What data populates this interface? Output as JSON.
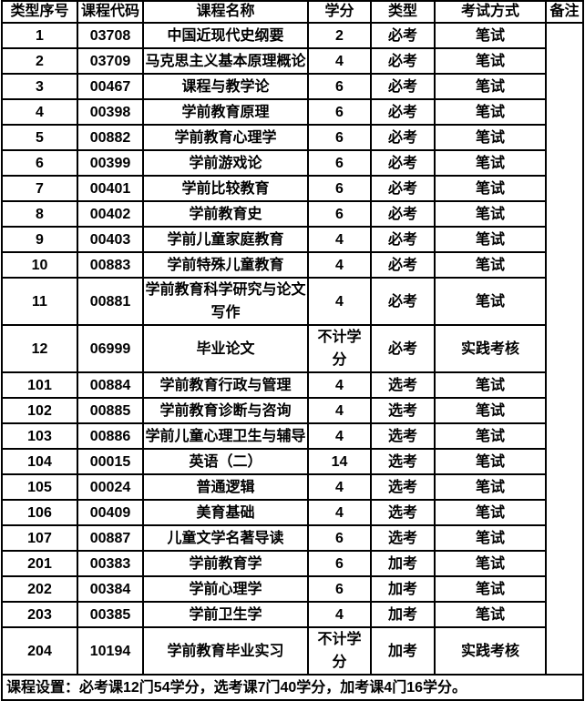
{
  "table": {
    "headers": [
      "类型序号",
      "课程代码",
      "课程名称",
      "学分",
      "类型",
      "考试方式",
      "备注"
    ],
    "rows": [
      {
        "seq": "1",
        "code": "03708",
        "name": "中国近现代史纲要",
        "credits": "2",
        "type": "必考",
        "exam": "笔试"
      },
      {
        "seq": "2",
        "code": "03709",
        "name": "马克思主义基本原理概论",
        "credits": "4",
        "type": "必考",
        "exam": "笔试"
      },
      {
        "seq": "3",
        "code": "00467",
        "name": "课程与教学论",
        "credits": "6",
        "type": "必考",
        "exam": "笔试"
      },
      {
        "seq": "4",
        "code": "00398",
        "name": "学前教育原理",
        "credits": "6",
        "type": "必考",
        "exam": "笔试"
      },
      {
        "seq": "5",
        "code": "00882",
        "name": "学前教育心理学",
        "credits": "6",
        "type": "必考",
        "exam": "笔试"
      },
      {
        "seq": "6",
        "code": "00399",
        "name": "学前游戏论",
        "credits": "6",
        "type": "必考",
        "exam": "笔试"
      },
      {
        "seq": "7",
        "code": "00401",
        "name": "学前比较教育",
        "credits": "6",
        "type": "必考",
        "exam": "笔试"
      },
      {
        "seq": "8",
        "code": "00402",
        "name": "学前教育史",
        "credits": "6",
        "type": "必考",
        "exam": "笔试"
      },
      {
        "seq": "9",
        "code": "00403",
        "name": "学前儿童家庭教育",
        "credits": "4",
        "type": "必考",
        "exam": "笔试"
      },
      {
        "seq": "10",
        "code": "00883",
        "name": "学前特殊儿童教育",
        "credits": "4",
        "type": "必考",
        "exam": "笔试"
      },
      {
        "seq": "11",
        "code": "00881",
        "name": "学前教育科学研究与论文写作",
        "credits": "4",
        "type": "必考",
        "exam": "笔试"
      },
      {
        "seq": "12",
        "code": "06999",
        "name": "毕业论文",
        "credits": "不计学分",
        "type": "必考",
        "exam": "实践考核"
      },
      {
        "seq": "101",
        "code": "00884",
        "name": "学前教育行政与管理",
        "credits": "4",
        "type": "选考",
        "exam": "笔试"
      },
      {
        "seq": "102",
        "code": "00885",
        "name": "学前教育诊断与咨询",
        "credits": "4",
        "type": "选考",
        "exam": "笔试"
      },
      {
        "seq": "103",
        "code": "00886",
        "name": "学前儿童心理卫生与辅导",
        "credits": "4",
        "type": "选考",
        "exam": "笔试"
      },
      {
        "seq": "104",
        "code": "00015",
        "name": "英语（二）",
        "credits": "14",
        "type": "选考",
        "exam": "笔试"
      },
      {
        "seq": "105",
        "code": "00024",
        "name": "普通逻辑",
        "credits": "4",
        "type": "选考",
        "exam": "笔试"
      },
      {
        "seq": "106",
        "code": "00409",
        "name": "美育基础",
        "credits": "4",
        "type": "选考",
        "exam": "笔试"
      },
      {
        "seq": "107",
        "code": "00887",
        "name": "儿童文学名著导读",
        "credits": "6",
        "type": "选考",
        "exam": "笔试"
      },
      {
        "seq": "201",
        "code": "00383",
        "name": "学前教育学",
        "credits": "6",
        "type": "加考",
        "exam": "笔试"
      },
      {
        "seq": "202",
        "code": "00384",
        "name": "学前心理学",
        "credits": "6",
        "type": "加考",
        "exam": "笔试"
      },
      {
        "seq": "203",
        "code": "00385",
        "name": "学前卫生学",
        "credits": "4",
        "type": "加考",
        "exam": "笔试"
      },
      {
        "seq": "204",
        "code": "10194",
        "name": "学前教育毕业实习",
        "credits": "不计学分",
        "type": "加考",
        "exam": "实践考核"
      }
    ],
    "remarks": "",
    "footer": "课程设置：必考课12门54学分，选考课7门40学分，加考课4门16学分。"
  }
}
